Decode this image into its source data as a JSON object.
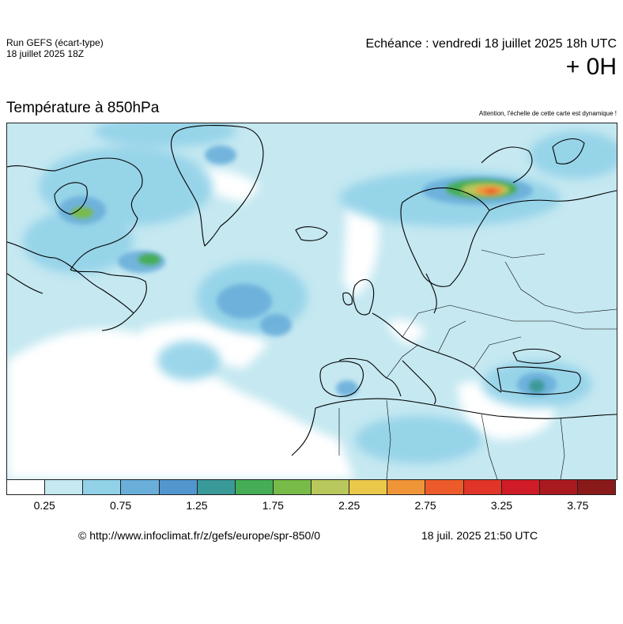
{
  "header": {
    "run_title": "Run GEFS (écart-type)",
    "run_date": "18 juillet 2025 18Z",
    "echeance": "Echéance : vendredi 18 juillet 2025 18h UTC",
    "plus_hours": "+ 0H"
  },
  "map": {
    "title": "Température à 850hPa",
    "notice": "Attention, l'échelle de cette carte est dynamique !",
    "region": "Europe / North Atlantic"
  },
  "legend": {
    "colors": [
      "#ffffff",
      "#c5e8f1",
      "#92d2e8",
      "#6aafda",
      "#5296cf",
      "#3a9999",
      "#44ad55",
      "#78bb48",
      "#b8c85c",
      "#eac84a",
      "#ef9538",
      "#ed5b2a",
      "#e03528",
      "#cf1c28",
      "#a91a1f",
      "#8a1a1a"
    ],
    "labels": [
      "0.25",
      "0.75",
      "1.25",
      "1.75",
      "2.25",
      "2.75",
      "3.25",
      "3.75"
    ]
  },
  "footer": {
    "source_url": "© http://www.infoclimat.fr/z/gefs/europe/spr-850/0",
    "issued": "18 juil. 2025 21:50 UTC"
  }
}
